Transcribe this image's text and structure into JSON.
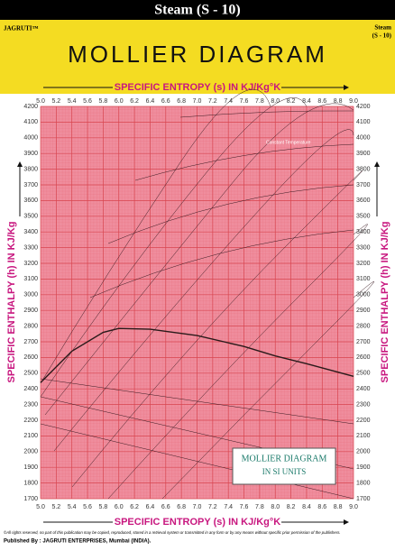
{
  "header": {
    "title": "Steam (S - 10)",
    "brand": "JAGRUTI™",
    "code_line1": "Steam",
    "code_line2": "(S - 10)"
  },
  "chart_data": {
    "type": "line",
    "title": "MOLLIER DIAGRAM",
    "x_axis_label": "SPECIFIC ENTROPY (s) IN KJ/Kg°K",
    "y_axis_label": "SPECIFIC ENTHALPY (h) IN KJ/Kg",
    "xlim": [
      5.0,
      9.0
    ],
    "ylim": [
      1700,
      4200
    ],
    "xticks": [
      {
        "value": 5.0,
        "label": "5.0"
      },
      5.2,
      5.4,
      5.6,
      5.8,
      {
        "value": 6.0,
        "label": "6.0"
      },
      6.2,
      6.4,
      6.6,
      6.8,
      {
        "value": 7.0,
        "label": "7.0"
      },
      7.2,
      7.4,
      7.6,
      7.8,
      {
        "value": 8.0,
        "label": "8.0"
      },
      8.2,
      8.4,
      8.6,
      8.8,
      {
        "value": 9.0,
        "label": "9.0"
      }
    ],
    "yticks": [
      1700,
      1800,
      1900,
      2000,
      2100,
      2200,
      2300,
      2400,
      2500,
      2600,
      2700,
      2800,
      2900,
      3000,
      3100,
      3200,
      3300,
      3400,
      3500,
      3600,
      3700,
      3800,
      3900,
      4000,
      4100,
      4200
    ],
    "grid": true,
    "background": "#ef8d9d",
    "grid_color": "#d8454f",
    "series": [
      {
        "color": "#2a1a1a",
        "x": [
          5.0,
          5.4,
          5.8,
          6.0,
          6.4,
          7.0,
          7.6,
          8.0,
          8.4,
          9.0
        ],
        "values": [
          2440,
          2640,
          2760,
          2785,
          2780,
          2740,
          2670,
          2610,
          2560,
          2480
        ]
      }
    ],
    "annotations": [
      "Constant Temperature"
    ],
    "info_box": [
      "MOLLIER DIAGRAM",
      "IN SI UNITS"
    ]
  },
  "footer": {
    "copyright": "©All rights reserved, no part of this publication may be copied, reproduced, stored in a retrieval system or transmitted in any form or by any means without specific prior permission of the publishers.",
    "published": "Published By :  JAGRUTI ENTERPRISES, Mumbai (INDIA)."
  }
}
